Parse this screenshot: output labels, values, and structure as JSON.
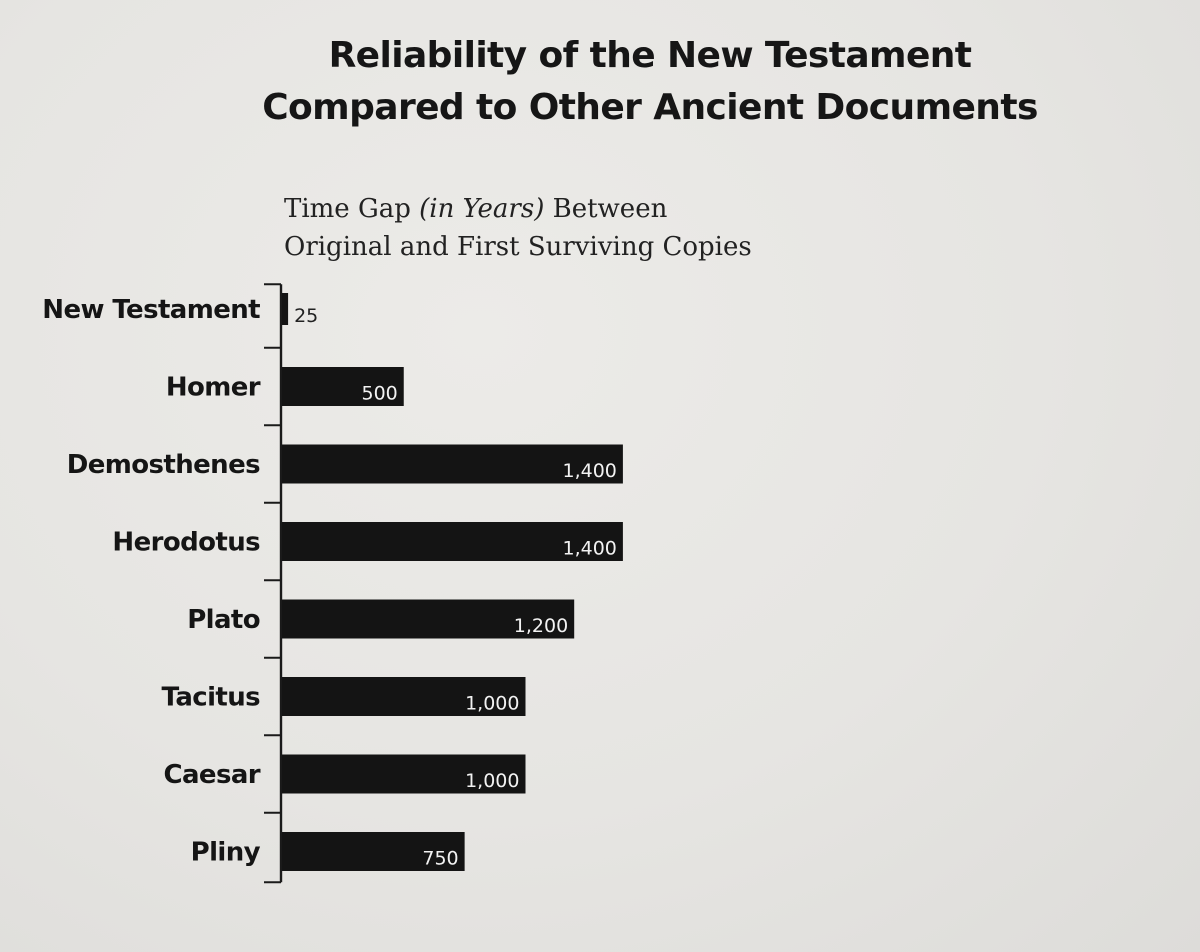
{
  "chart_data": {
    "type": "bar",
    "orientation": "horizontal",
    "title_lines": [
      "Reliability of the New Testament",
      "Compared to Other Ancient Documents"
    ],
    "subtitle": {
      "line1_before": "Time Gap ",
      "line1_italic": "(in Years)",
      "line1_after": " Between",
      "line2": "Original and First Surviving Copies"
    },
    "categories": [
      "New Testament",
      "Homer",
      "Demosthenes",
      "Herodotus",
      "Plato",
      "Tacitus",
      "Caesar",
      "Pliny"
    ],
    "values": [
      25,
      500,
      1400,
      1400,
      1200,
      1000,
      1000,
      750
    ],
    "value_labels": [
      "25",
      "500",
      "1,400",
      "1,400",
      "1,200",
      "1,000",
      "1,000",
      "750"
    ],
    "xlim": [
      0,
      1400
    ],
    "grid": false,
    "legend": "none",
    "bar_color": "#141414"
  }
}
